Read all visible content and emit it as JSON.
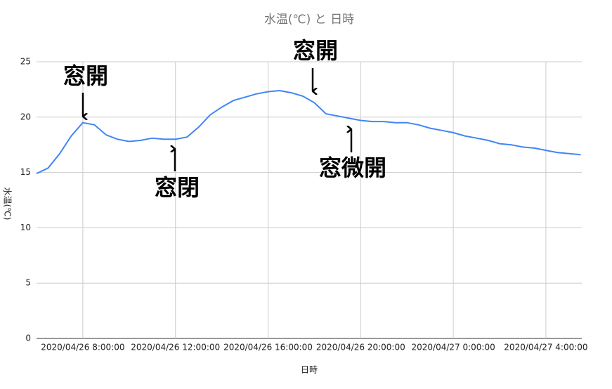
{
  "chart_data": {
    "type": "line",
    "title": "水温(℃) と 日時",
    "x_label": "日時",
    "y_label": "水温(℃)",
    "x": [
      "2020/04/26 6:00:00",
      "2020/04/26 6:30:00",
      "2020/04/26 7:00:00",
      "2020/04/26 7:30:00",
      "2020/04/26 8:00:00",
      "2020/04/26 8:30:00",
      "2020/04/26 9:00:00",
      "2020/04/26 9:30:00",
      "2020/04/26 10:00:00",
      "2020/04/26 10:30:00",
      "2020/04/26 11:00:00",
      "2020/04/26 11:30:00",
      "2020/04/26 12:00:00",
      "2020/04/26 12:30:00",
      "2020/04/26 13:00:00",
      "2020/04/26 13:30:00",
      "2020/04/26 14:00:00",
      "2020/04/26 14:30:00",
      "2020/04/26 15:00:00",
      "2020/04/26 15:30:00",
      "2020/04/26 16:00:00",
      "2020/04/26 16:30:00",
      "2020/04/26 17:00:00",
      "2020/04/26 17:30:00",
      "2020/04/26 18:00:00",
      "2020/04/26 18:30:00",
      "2020/04/26 19:00:00",
      "2020/04/26 19:30:00",
      "2020/04/26 20:00:00",
      "2020/04/26 20:30:00",
      "2020/04/26 21:00:00",
      "2020/04/26 21:30:00",
      "2020/04/26 22:00:00",
      "2020/04/26 22:30:00",
      "2020/04/26 23:00:00",
      "2020/04/26 23:30:00",
      "2020/04/27 0:00:00",
      "2020/04/27 0:30:00",
      "2020/04/27 1:00:00",
      "2020/04/27 1:30:00",
      "2020/04/27 2:00:00",
      "2020/04/27 2:30:00",
      "2020/04/27 3:00:00",
      "2020/04/27 3:30:00",
      "2020/04/27 4:00:00",
      "2020/04/27 4:30:00",
      "2020/04/27 5:00:00",
      "2020/04/27 5:30:00"
    ],
    "series": [
      {
        "name": "水温(℃)",
        "color": "#4285f4",
        "values": [
          14.9,
          15.4,
          16.7,
          18.3,
          19.5,
          19.3,
          18.4,
          18.0,
          17.8,
          17.9,
          18.1,
          18.0,
          18.0,
          18.2,
          19.1,
          20.2,
          20.9,
          21.5,
          21.8,
          22.1,
          22.3,
          22.4,
          22.2,
          21.9,
          21.3,
          20.3,
          20.1,
          19.9,
          19.7,
          19.6,
          19.6,
          19.5,
          19.5,
          19.3,
          19.0,
          18.8,
          18.6,
          18.3,
          18.1,
          17.9,
          17.6,
          17.5,
          17.3,
          17.2,
          17.0,
          16.8,
          16.7,
          16.6
        ]
      }
    ],
    "xlim": [
      "2020/04/26 6:00:00",
      "2020/04/27 5:33:00"
    ],
    "xticks": [
      "2020/04/26 8:00:00",
      "2020/04/26 12:00:00",
      "2020/04/26 16:00:00",
      "2020/04/26 20:00:00",
      "2020/04/27 0:00:00",
      "2020/04/27 4:00:00"
    ],
    "ylim": [
      0,
      25
    ],
    "yticks": [
      0,
      5,
      10,
      15,
      20,
      25
    ],
    "grid": true,
    "annotations": [
      "窓開",
      "窓閉",
      "窓開",
      "窓微開"
    ]
  }
}
